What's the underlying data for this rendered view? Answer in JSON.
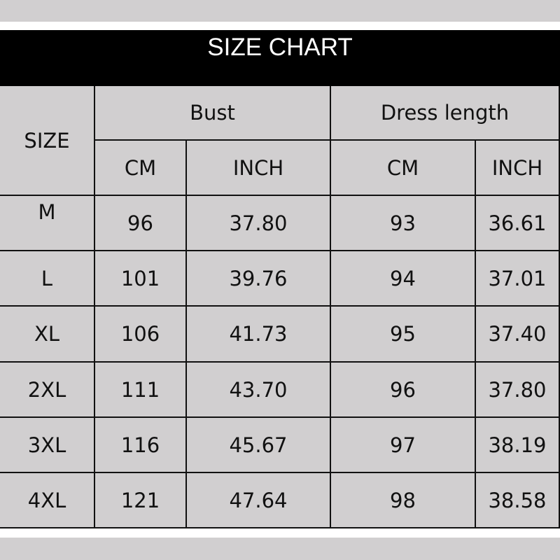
{
  "title": "SIZE CHART",
  "headers": {
    "size": "SIZE",
    "bust": "Bust",
    "length": "Dress length",
    "cm": "CM",
    "inch": "INCH"
  },
  "rows": [
    [
      "M",
      "96",
      "37.80",
      "93",
      "36.61"
    ],
    [
      "L",
      "101",
      "39.76",
      "94",
      "37.01"
    ],
    [
      "XL",
      "106",
      "41.73",
      "95",
      "37.40"
    ],
    [
      "2XL",
      "111",
      "43.70",
      "96",
      "37.80"
    ],
    [
      "3XL",
      "116",
      "45.67",
      "97",
      "38.19"
    ],
    [
      "4XL",
      "121",
      "47.64",
      "98",
      "38.58"
    ]
  ]
}
